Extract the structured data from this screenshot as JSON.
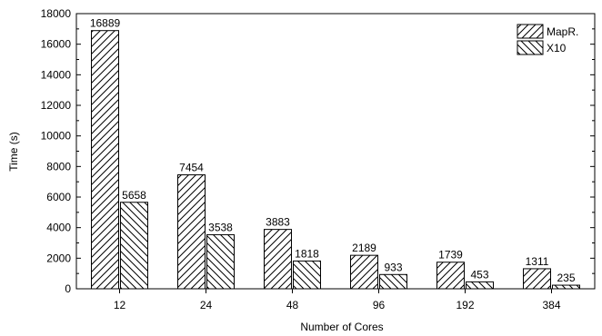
{
  "chart_data": {
    "type": "bar",
    "xlabel": "Number of Cores",
    "ylabel": "Time (s)",
    "categories": [
      "12",
      "24",
      "48",
      "96",
      "192",
      "384"
    ],
    "series": [
      {
        "name": "MapR.",
        "values": [
          16889,
          7454,
          3883,
          2189,
          1739,
          1311
        ],
        "hatch": "forward-diagonal"
      },
      {
        "name": "X10",
        "values": [
          5658,
          3538,
          1818,
          933,
          453,
          235
        ],
        "hatch": "backward-diagonal"
      }
    ],
    "ylim": [
      0,
      18000
    ],
    "yticks": [
      "0",
      "2000",
      "4000",
      "6000",
      "8000",
      "10000",
      "12000",
      "14000",
      "16000",
      "18000"
    ],
    "grid": false,
    "legend_position": "top-right",
    "colors": {
      "bar_fill": "#ffffff",
      "stroke": "#000000"
    }
  }
}
